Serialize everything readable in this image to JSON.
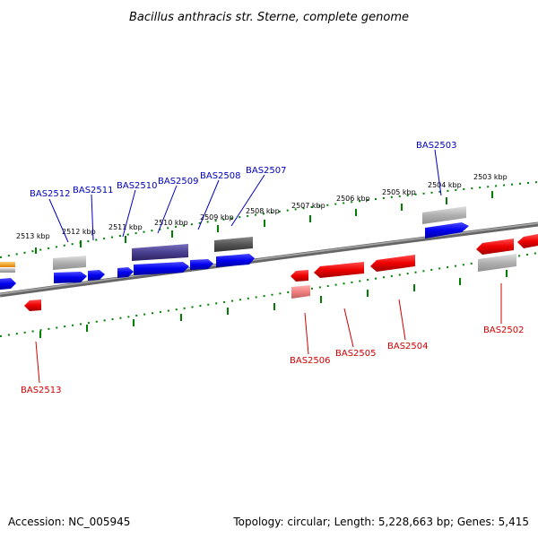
{
  "title": "Bacillus anthracis str. Sterne, complete genome",
  "footer": {
    "accession": "Accession: NC_005945",
    "topology": "Topology: circular; Length: 5,228,663 bp; Genes: 5,415"
  },
  "colors": {
    "forward_gene": "#0000ee",
    "reverse_gene": "#ee0000",
    "forward_label": "#0000c0",
    "reverse_label": "#d00000",
    "pseudo_gray": "#b0b0b0",
    "dark_gray": "#555555",
    "dark_blue": "#4a4090",
    "light_red": "#f08080",
    "orange": "#f0a020",
    "ruler": "#008000",
    "backbone": "#777777"
  },
  "ruler": {
    "ticks": [
      {
        "label": "2513 kbp"
      },
      {
        "label": "2512 kbp"
      },
      {
        "label": "2511 kbp"
      },
      {
        "label": "2510 kbp"
      },
      {
        "label": "2509 kbp"
      },
      {
        "label": "2508 kbp"
      },
      {
        "label": "2507 kbp"
      },
      {
        "label": "2506 kbp"
      },
      {
        "label": "2505 kbp"
      },
      {
        "label": "2504 kbp"
      },
      {
        "label": "2503 kbp"
      }
    ]
  },
  "labels": {
    "forward": [
      "BAS2512",
      "BAS2511",
      "BAS2510",
      "BAS2509",
      "BAS2508",
      "BAS2507",
      "BAS2503"
    ],
    "reverse": [
      "BAS2513",
      "BAS2506",
      "BAS2505",
      "BAS2504",
      "BAS2502"
    ]
  }
}
